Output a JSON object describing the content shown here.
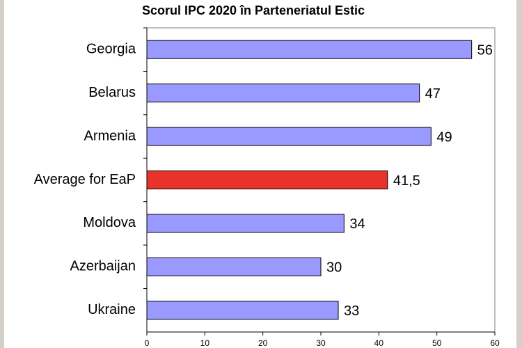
{
  "chart_data": {
    "type": "bar",
    "orientation": "horizontal",
    "title": "Scorul IPC 2020 în Parteneriatul Estic",
    "categories": [
      "Georgia",
      "Belarus",
      "Armenia",
      "Average for EaP",
      "Moldova",
      "Azerbaijan",
      "Ukraine"
    ],
    "values": [
      56,
      47,
      49,
      41.5,
      34,
      30,
      33
    ],
    "value_labels": [
      "56",
      "47",
      "49",
      "41,5",
      "34",
      "30",
      "33"
    ],
    "colors": [
      "#9999ff",
      "#9999ff",
      "#9999ff",
      "#e8322a",
      "#9999ff",
      "#9999ff",
      "#9999ff"
    ],
    "xlim": [
      0,
      60
    ],
    "xticks": [
      0,
      10,
      20,
      30,
      40,
      50,
      60
    ]
  }
}
